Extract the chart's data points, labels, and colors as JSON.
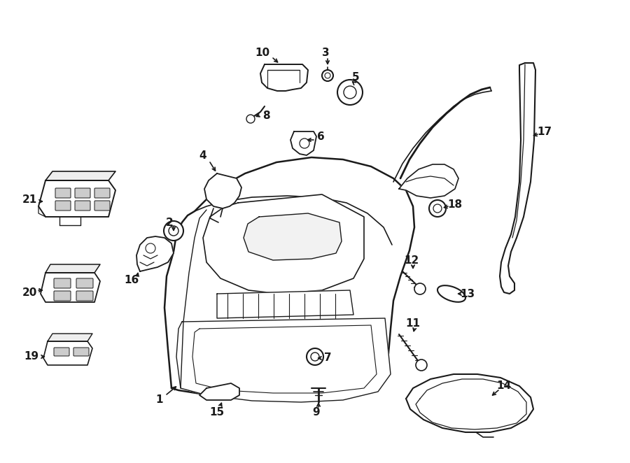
{
  "bg_color": "#ffffff",
  "line_color": "#1a1a1a",
  "fig_width": 9.0,
  "fig_height": 6.62,
  "dpi": 100,
  "label_fontsize": 11,
  "label_fontweight": "bold"
}
